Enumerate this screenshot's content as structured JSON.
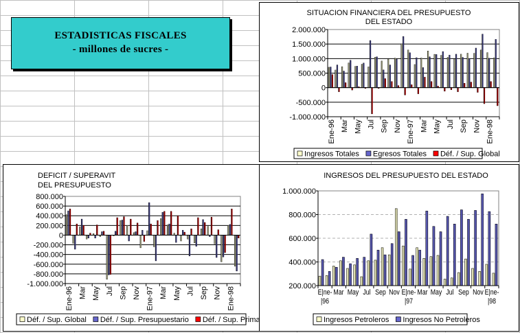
{
  "header": {
    "title": "ESTADISTICAS FISCALES",
    "subtitle": "- millones de sucres -"
  },
  "colors": {
    "ingresos": "#ffffcc",
    "egresos": "#6666cc",
    "deficit": "#ff0000",
    "title_box": "#33cccc"
  },
  "chart_data": [
    {
      "type": "bar",
      "title": [
        "SITUACION FINANCIERA DEL PRESUPUESTO",
        "DEL ESTADO"
      ],
      "categories": [
        "Ene-96",
        "Feb",
        "Mar",
        "Abr",
        "May",
        "Jun",
        "Jul",
        "Ago",
        "Sep",
        "Oct",
        "Nov",
        "Dic",
        "Ene-97",
        "Feb",
        "Mar",
        "Abr",
        "May",
        "Jun",
        "Jul",
        "Ago",
        "Sep",
        "Oct",
        "Nov",
        "Dic",
        "Ene-98",
        "Feb"
      ],
      "xtick_labels": [
        "Ene-96",
        "Mar",
        "May",
        "Jul",
        "Sep",
        "Nov",
        "Ene-97",
        "Mar",
        "May",
        "Jul",
        "Sep",
        "Nov",
        "Ene-98"
      ],
      "ylim": [
        -1000000,
        2000000
      ],
      "yticks": [
        "-1.000.000",
        "-500.000",
        "0",
        "500.000",
        "1.000.000",
        "1.500.000",
        "2.000.000"
      ],
      "series": [
        {
          "name": "Ingresos Totales",
          "color": "#ffffcc",
          "values": [
            700000,
            605000,
            720000,
            850000,
            730000,
            805000,
            715000,
            1045000,
            915000,
            980000,
            1015000,
            1505000,
            1295000,
            795000,
            1020000,
            1260000,
            1145000,
            1110000,
            1040000,
            985000,
            1150000,
            1185000,
            1180000,
            1295000,
            1205000,
            1025000
          ]
        },
        {
          "name": "Egresos Totales",
          "color": "#6666cc",
          "values": [
            710000,
            780000,
            570000,
            940000,
            740000,
            845000,
            1620000,
            1060000,
            610000,
            780000,
            975000,
            1760000,
            1200000,
            1030000,
            690000,
            1060000,
            1140000,
            1240000,
            1120000,
            1150000,
            1040000,
            1000000,
            1360000,
            1840000,
            1010000,
            1660000
          ]
        },
        {
          "name": "Déf. / Sup. Global",
          "color": "#ff0000",
          "values": [
            450000,
            -140000,
            170000,
            -80000,
            30000,
            -20000,
            -900000,
            0,
            310000,
            210000,
            70000,
            -250000,
            100000,
            -210000,
            360000,
            210000,
            50000,
            -120000,
            -70000,
            -140000,
            150000,
            190000,
            -160000,
            -550000,
            210000,
            -620000
          ]
        }
      ],
      "legend": "bottom",
      "grid": true
    },
    {
      "type": "bar",
      "title": [
        "DEFICIT / SUPERAVIT",
        "DEL PRESUPUESTO"
      ],
      "categories": [
        "Ene-96",
        "Feb",
        "Mar",
        "Abr",
        "May",
        "Jun",
        "Jul",
        "Ago",
        "Sep",
        "Oct",
        "Nov",
        "Dic",
        "Ene-97",
        "Feb",
        "Mar",
        "Abr",
        "May",
        "Jun",
        "Jul",
        "Ago",
        "Sep",
        "Oct",
        "Nov",
        "Dic",
        "Ene-98",
        "Feb"
      ],
      "xtick_labels": [
        "Ene-96",
        "Mar",
        "May",
        "Jul",
        "Sep",
        "Nov",
        "Ene-97",
        "Mar",
        "May",
        "Jul",
        "Sep",
        "Nov",
        "Ene-98"
      ],
      "ylim": [
        -1000000,
        800000
      ],
      "yticks": [
        "-1.000.000",
        "-800.000",
        "-600.000",
        "-400.000",
        "-200.000",
        "0",
        "200.000",
        "400.000",
        "600.000",
        "800.000"
      ],
      "series": [
        {
          "name": "Déf. / Sup. Global",
          "color": "#ffffcc",
          "values": [
            420000,
            -170000,
            170000,
            -80000,
            30000,
            -30000,
            -910000,
            0,
            300000,
            200000,
            50000,
            -260000,
            90000,
            -240000,
            340000,
            210000,
            40000,
            -120000,
            -80000,
            -160000,
            130000,
            180000,
            -180000,
            -550000,
            200000,
            -640000
          ]
        },
        {
          "name": "Déf. / Sup. Presupuestario",
          "color": "#6666cc",
          "values": [
            500000,
            -290000,
            330000,
            -60000,
            -60000,
            70000,
            -820000,
            80000,
            310000,
            -120000,
            70000,
            100000,
            670000,
            -530000,
            470000,
            230000,
            -150000,
            100000,
            -430000,
            -230000,
            320000,
            -30000,
            -460000,
            -450000,
            220000,
            -740000
          ]
        },
        {
          "name": "Déf. / Sup. Primario",
          "color": "#ff0000",
          "values": [
            540000,
            230000,
            200000,
            40000,
            210000,
            80000,
            -810000,
            360000,
            380000,
            330000,
            250000,
            -130000,
            230000,
            300000,
            490000,
            490000,
            400000,
            60000,
            130000,
            360000,
            260000,
            370000,
            110000,
            -360000,
            540000,
            -60000
          ]
        }
      ],
      "legend": "bottom",
      "grid": true
    },
    {
      "type": "bar",
      "title": [
        "INGRESOS DEL PRESUPUESTO DEL ESTADO"
      ],
      "categories": [
        "Ene-96",
        "Feb",
        "Mar",
        "Abr",
        "May",
        "Jun",
        "Jul",
        "Ago",
        "Sep",
        "Oct",
        "Nov",
        "Dic",
        "Ene-97",
        "Feb",
        "Mar",
        "Abr",
        "May",
        "Jun",
        "Jul",
        "Ago",
        "Sep",
        "Oct",
        "Nov",
        "Dic",
        "Ene-98",
        "Feb"
      ],
      "xtick_labels": [
        "E|ne-|96",
        "Mar",
        "May",
        "Jul",
        "Sep",
        "Nov",
        "E|ne-|97",
        "Mar",
        "May",
        "Jul",
        "Sep",
        "Nov",
        "E|ne-|98"
      ],
      "ylim": [
        200000,
        1000000
      ],
      "yticks": [
        "200.000",
        "400.000",
        "600.000",
        "800.000",
        "1.000.000"
      ],
      "series": [
        {
          "name": "Ingresos Petroleros",
          "color": "#ffffcc",
          "values": [
            280000,
            285000,
            365000,
            410000,
            345000,
            375000,
            275000,
            410000,
            415000,
            520000,
            460000,
            850000,
            535000,
            340000,
            520000,
            430000,
            445000,
            455000,
            255000,
            265000,
            310000,
            425000,
            345000,
            320000,
            380000,
            305000
          ]
        },
        {
          "name": "Ingresos No Petroleros",
          "color": "#6666cc",
          "values": [
            420000,
            320000,
            355000,
            440000,
            385000,
            430000,
            440000,
            635000,
            500000,
            460000,
            555000,
            655000,
            760000,
            455000,
            500000,
            830000,
            700000,
            655000,
            785000,
            720000,
            840000,
            760000,
            835000,
            975000,
            825000,
            720000
          ]
        }
      ],
      "legend": "bottom",
      "grid": "dashed"
    }
  ]
}
